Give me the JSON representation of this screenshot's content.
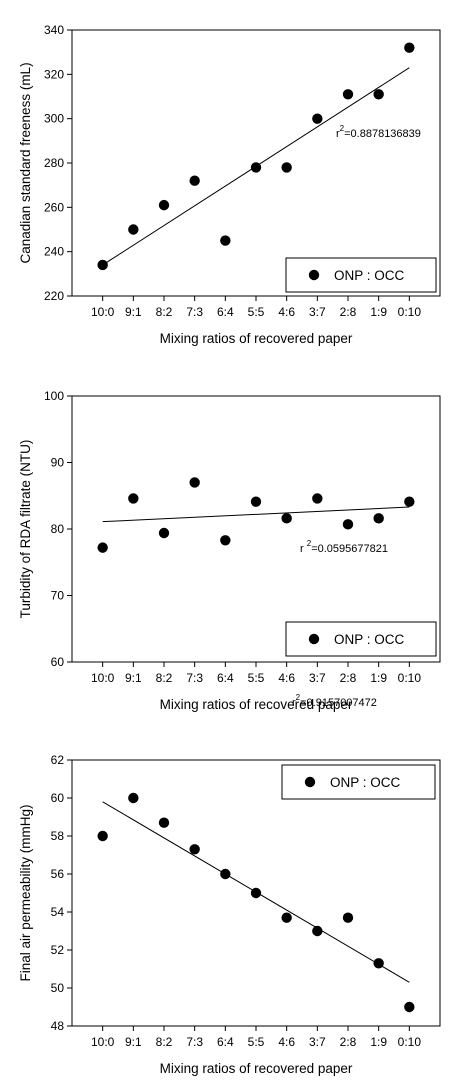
{
  "chart_data": [
    {
      "type": "scatter",
      "categories": [
        "10:0",
        "9:1",
        "8:2",
        "7:3",
        "6:4",
        "5:5",
        "4:6",
        "3:7",
        "2:8",
        "1:9",
        "0:10"
      ],
      "values": [
        234,
        250,
        261,
        272,
        245,
        278,
        278,
        300,
        311,
        311,
        332
      ],
      "trendline": {
        "start": 234,
        "end": 323
      },
      "xlabel": "Mixing ratios of recovered paper",
      "ylabel": "Canadian standard freeness (mL)",
      "ylim": [
        220,
        340
      ],
      "yticks": [
        220,
        240,
        260,
        280,
        300,
        320,
        340
      ],
      "legend": {
        "label": "ONP : OCC",
        "placement": "bottom-right"
      },
      "annotation": {
        "prefix": "r",
        "exponent": "2",
        "value": "=0.8878136839"
      },
      "grid": false
    },
    {
      "type": "scatter",
      "categories": [
        "10:0",
        "9:1",
        "8:2",
        "7:3",
        "6:4",
        "5:5",
        "4:6",
        "3:7",
        "2:8",
        "1:9",
        "0:10"
      ],
      "values": [
        77.2,
        84.6,
        79.4,
        87.0,
        78.3,
        84.1,
        81.6,
        84.6,
        80.7,
        81.6,
        84.1
      ],
      "trendline": {
        "start": 81.1,
        "end": 83.3
      },
      "xlabel": "Mixing ratios of recovered paper",
      "ylabel": "Turbidity of RDA filtrate (NTU)",
      "ylim": [
        60,
        100
      ],
      "yticks": [
        60,
        70,
        80,
        90,
        100
      ],
      "legend": {
        "label": "ONP : OCC",
        "placement": "bottom-right"
      },
      "annotation": {
        "prefix": "r ",
        "exponent": "2",
        "value": "=0.0595677821"
      },
      "grid": false
    },
    {
      "type": "scatter",
      "categories": [
        "10:0",
        "9:1",
        "8:2",
        "7:3",
        "6:4",
        "5:5",
        "4:6",
        "3:7",
        "2:8",
        "1:9",
        "0:10"
      ],
      "values": [
        58.0,
        60.0,
        58.7,
        57.3,
        56.0,
        55.0,
        53.7,
        53.0,
        53.7,
        51.3,
        49.0
      ],
      "trendline": {
        "start": 59.8,
        "end": 50.3
      },
      "xlabel": "Mixing ratios of recovered paper",
      "ylabel": "Final air permeability (mmHg)",
      "ylim": [
        48,
        62
      ],
      "yticks": [
        48,
        50,
        52,
        54,
        56,
        58,
        60,
        62
      ],
      "legend": {
        "label": "ONP : OCC",
        "placement": "top-right"
      },
      "annotation": {
        "prefix": "r",
        "exponent": "2",
        "value": "=0.9157007472"
      },
      "grid": false
    }
  ]
}
